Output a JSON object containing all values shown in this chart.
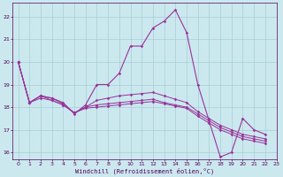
{
  "xlabel": "Windchill (Refroidissement éolien,°C)",
  "background_color": "#cbe8ef",
  "grid_color": "#a8cdd4",
  "line_color": "#993399",
  "xlim": [
    -0.5,
    23
  ],
  "ylim": [
    15.7,
    22.6
  ],
  "yticks": [
    16,
    17,
    18,
    19,
    20,
    21,
    22
  ],
  "xticks": [
    0,
    1,
    2,
    3,
    4,
    5,
    6,
    7,
    8,
    9,
    10,
    11,
    12,
    13,
    14,
    15,
    16,
    17,
    18,
    19,
    20,
    21,
    22,
    23
  ],
  "series": [
    [
      20.0,
      18.2,
      18.5,
      18.4,
      18.2,
      17.7,
      18.1,
      19.0,
      19.0,
      19.5,
      20.7,
      20.7,
      21.5,
      21.8,
      22.3,
      21.3,
      19.0,
      17.4,
      15.8,
      16.0,
      17.5,
      17.0,
      16.8
    ],
    [
      20.0,
      18.2,
      18.5,
      18.3,
      18.1,
      17.75,
      18.0,
      18.1,
      18.15,
      18.2,
      18.25,
      18.3,
      18.35,
      18.2,
      18.1,
      18.0,
      17.7,
      17.4,
      17.1,
      16.9,
      16.7,
      16.6,
      16.5
    ],
    [
      20.0,
      18.2,
      18.4,
      18.3,
      18.1,
      17.75,
      17.95,
      18.0,
      18.05,
      18.1,
      18.15,
      18.2,
      18.25,
      18.15,
      18.05,
      17.95,
      17.6,
      17.3,
      17.0,
      16.8,
      16.6,
      16.5,
      16.4
    ],
    [
      20.0,
      18.2,
      18.5,
      18.4,
      18.15,
      17.75,
      18.0,
      18.3,
      18.4,
      18.5,
      18.55,
      18.6,
      18.65,
      18.5,
      18.35,
      18.2,
      17.8,
      17.5,
      17.2,
      17.0,
      16.8,
      16.7,
      16.6
    ]
  ]
}
